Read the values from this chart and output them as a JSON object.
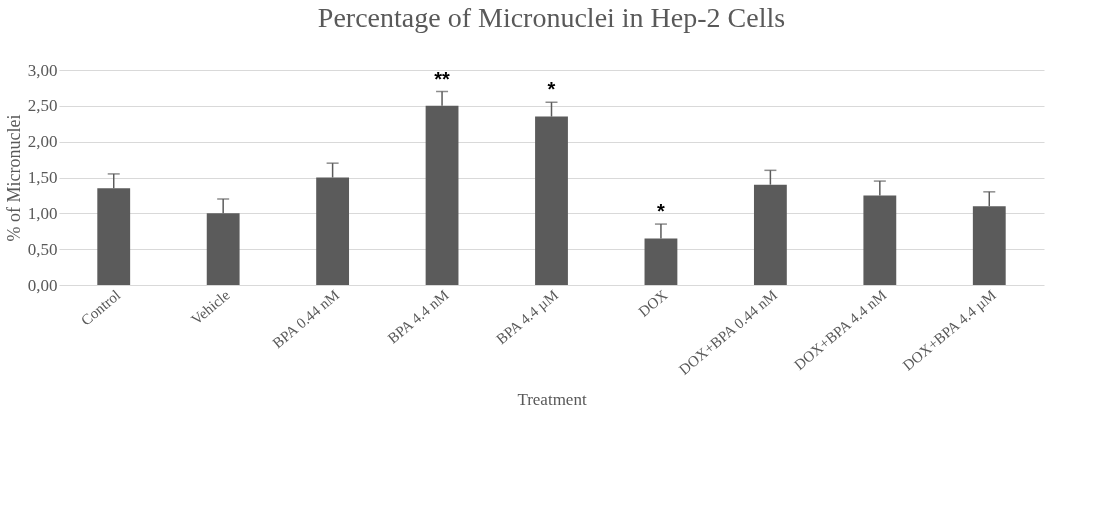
{
  "chart_data": {
    "type": "bar",
    "title": "Percentage of Micronuclei in Hep-2 Cells",
    "xlabel": "Treatment",
    "ylabel": "% of Micronuclei",
    "categories": [
      "Control",
      "Vehicle",
      "BPA 0.44 nM",
      "BPA 4.4 nM",
      "BPA 4.4 µM",
      "DOX",
      "DOX+BPA 0.44 nM",
      "DOX+BPA 4.4 nM",
      "DOX+BPA 4.4 µM"
    ],
    "values": [
      1.35,
      1.0,
      1.5,
      2.5,
      2.35,
      0.65,
      1.4,
      1.25,
      1.1
    ],
    "errors": [
      [
        1.35,
        1.55
      ],
      [
        1.0,
        1.2
      ],
      [
        1.5,
        1.7
      ],
      [
        2.5,
        2.7
      ],
      [
        2.35,
        2.55
      ],
      [
        0.65,
        0.85
      ],
      [
        1.4,
        1.6
      ],
      [
        1.25,
        1.45
      ],
      [
        1.1,
        1.3
      ]
    ],
    "color": "#5b5b5b",
    "ylim": [
      0,
      3
    ],
    "yticks": [
      {
        "value": 0,
        "label": "0,00"
      },
      {
        "value": 0.5,
        "label": "0,50"
      },
      {
        "value": 1,
        "label": "1,00"
      },
      {
        "value": 1.5,
        "label": "1,50"
      },
      {
        "value": 2,
        "label": "2,00"
      },
      {
        "value": 2.5,
        "label": "2,50"
      },
      {
        "value": 3,
        "label": "3,00"
      }
    ],
    "grid": "y",
    "annotations": [
      {
        "text": "**",
        "x": "BPA 4.4 nM",
        "y": 2.7
      },
      {
        "text": "*",
        "x": "BPA 4.4 µM",
        "y": 2.55
      },
      {
        "text": "*",
        "x": "DOX",
        "y": 0.85
      }
    ]
  }
}
